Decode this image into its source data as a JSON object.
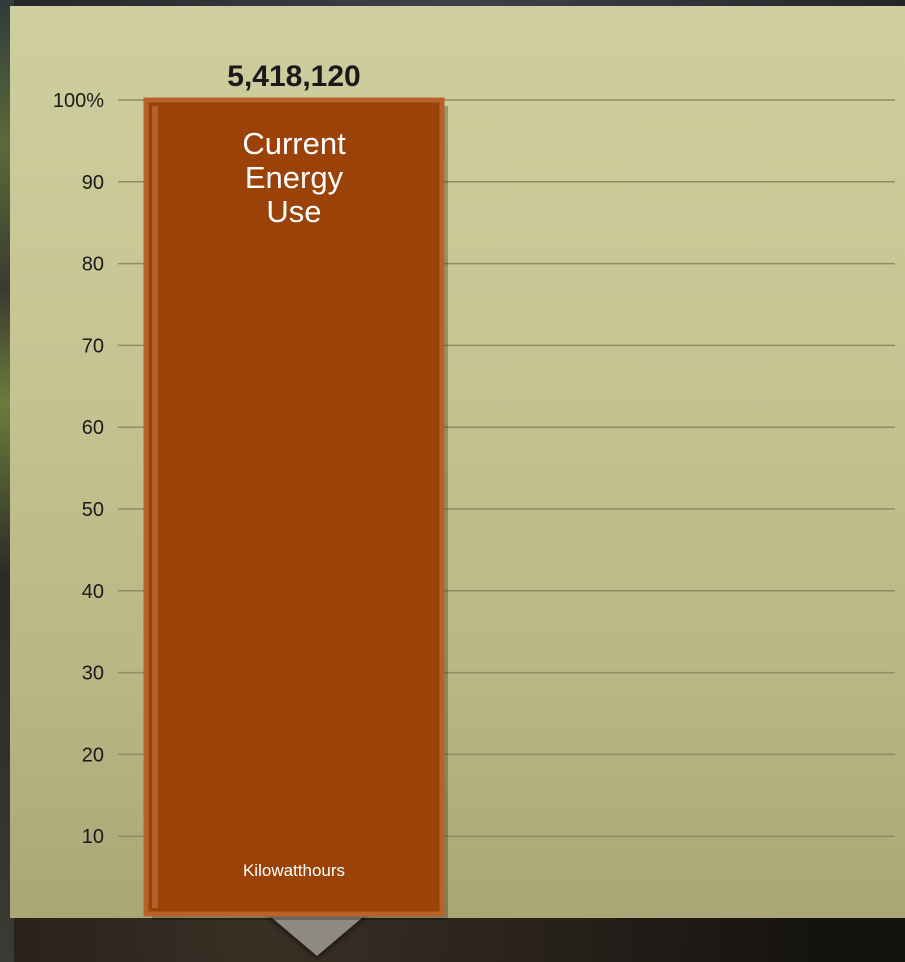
{
  "chart_data": {
    "type": "bar",
    "categories": [
      "Current Energy Use"
    ],
    "values": [
      100
    ],
    "bar_label_lines": [
      "Current",
      "Energy",
      "Use"
    ],
    "value_label": "5,418,120",
    "unit_label": "Kilowatthours",
    "ylim": [
      0,
      100
    ],
    "yticks": [
      {
        "value": 100,
        "label": "100%"
      },
      {
        "value": 90,
        "label": "90"
      },
      {
        "value": 80,
        "label": "80"
      },
      {
        "value": 70,
        "label": "70"
      },
      {
        "value": 60,
        "label": "60"
      },
      {
        "value": 50,
        "label": "50"
      },
      {
        "value": 40,
        "label": "40"
      },
      {
        "value": 30,
        "label": "30"
      },
      {
        "value": 20,
        "label": "20"
      },
      {
        "value": 10,
        "label": "10"
      }
    ],
    "grid": true,
    "colors": {
      "bar": "#9a4207",
      "bar_edge": "#b8622a",
      "grid": "#8f8c63",
      "text": "#1a1a1a",
      "bar_text": "#ffffff"
    }
  }
}
